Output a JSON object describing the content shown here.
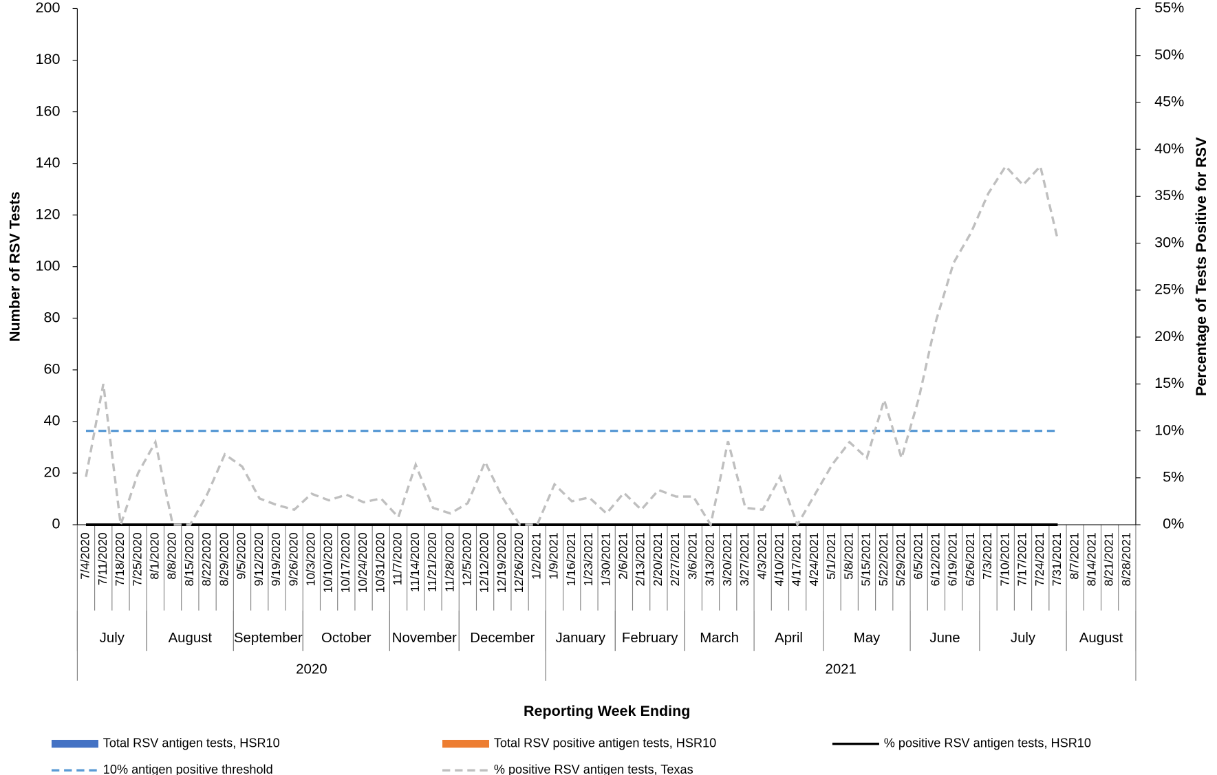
{
  "chart_data": {
    "type": "combo",
    "y_label": "Number of RSV Tests",
    "y2_label": "Percentage of Tests Positive for RSV",
    "x_label": "Reporting Week Ending",
    "categories": [
      "7/4/2020",
      "7/11/2020",
      "7/18/2020",
      "7/25/2020",
      "8/1/2020",
      "8/8/2020",
      "8/15/2020",
      "8/22/2020",
      "8/29/2020",
      "9/5/2020",
      "9/12/2020",
      "9/19/2020",
      "9/26/2020",
      "10/3/2020",
      "10/10/2020",
      "10/17/2020",
      "10/24/2020",
      "10/31/2020",
      "11/7/2020",
      "11/14/2020",
      "11/21/2020",
      "11/28/2020",
      "12/5/2020",
      "12/12/2020",
      "12/19/2020",
      "12/26/2020",
      "1/2/2021",
      "1/9/2021",
      "1/16/2021",
      "1/23/2021",
      "1/30/2021",
      "2/6/2021",
      "2/13/2021",
      "2/20/2021",
      "2/27/2021",
      "3/6/2021",
      "3/13/2021",
      "3/20/2021",
      "3/27/2021",
      "4/3/2021",
      "4/10/2021",
      "4/17/2021",
      "4/24/2021",
      "5/1/2021",
      "5/8/2021",
      "5/15/2021",
      "5/22/2021",
      "5/29/2021",
      "6/5/2021",
      "6/12/2021",
      "6/19/2021",
      "6/26/2021",
      "7/3/2021",
      "7/10/2021",
      "7/17/2021",
      "7/24/2021",
      "7/31/2021",
      "8/7/2021",
      "8/14/2021",
      "8/21/2021",
      "8/28/2021"
    ],
    "months": [
      {
        "label": "July",
        "weeks": 4
      },
      {
        "label": "August",
        "weeks": 5
      },
      {
        "label": "September",
        "weeks": 4
      },
      {
        "label": "October",
        "weeks": 5
      },
      {
        "label": "November",
        "weeks": 4
      },
      {
        "label": "December",
        "weeks": 5
      },
      {
        "label": "January",
        "weeks": 4
      },
      {
        "label": "February",
        "weeks": 4
      },
      {
        "label": "March",
        "weeks": 4
      },
      {
        "label": "April",
        "weeks": 4
      },
      {
        "label": "May",
        "weeks": 5
      },
      {
        "label": "June",
        "weeks": 4
      },
      {
        "label": "July",
        "weeks": 5
      },
      {
        "label": "August",
        "weeks": 4
      }
    ],
    "years": [
      {
        "label": "2020",
        "weeks": 27
      },
      {
        "label": "2021",
        "weeks": 34
      }
    ],
    "ylim": [
      0,
      200
    ],
    "yticks": [
      0,
      20,
      40,
      60,
      80,
      100,
      120,
      140,
      160,
      180,
      200
    ],
    "y2lim": [
      0,
      55
    ],
    "y2ticks": [
      {
        "value": 0,
        "label": "0%"
      },
      {
        "value": 5,
        "label": "5%"
      },
      {
        "value": 10,
        "label": "10%"
      },
      {
        "value": 15,
        "label": "15%"
      },
      {
        "value": 20,
        "label": "20%"
      },
      {
        "value": 25,
        "label": "25%"
      },
      {
        "value": 30,
        "label": "30%"
      },
      {
        "value": 35,
        "label": "35%"
      },
      {
        "value": 40,
        "label": "40%"
      },
      {
        "value": 45,
        "label": "45%"
      },
      {
        "value": 50,
        "label": "50%"
      },
      {
        "value": 55,
        "label": "55%"
      }
    ],
    "series": [
      {
        "name": "Total RSV antigen tests, HSR10",
        "kind": "bar",
        "color": "#4472c4",
        "values": [
          0,
          0,
          0,
          0,
          0,
          0,
          0,
          0,
          0,
          0,
          0,
          0,
          0,
          0,
          0,
          0,
          0,
          0,
          0,
          0,
          0,
          0,
          0,
          0,
          0,
          0,
          0,
          0,
          0,
          0,
          0,
          0,
          0,
          0,
          0,
          0,
          0,
          0,
          0,
          0,
          0,
          0,
          0,
          0,
          0,
          0,
          0,
          0,
          0,
          0,
          0,
          0,
          0,
          0,
          0,
          0,
          0,
          null,
          null,
          null,
          null
        ]
      },
      {
        "name": "Total RSV positive antigen tests, HSR10",
        "kind": "bar",
        "color": "#ed7d31",
        "values": [
          0,
          0,
          0,
          0,
          0,
          0,
          0,
          0,
          0,
          0,
          0,
          0,
          0,
          0,
          0,
          0,
          0,
          0,
          0,
          0,
          0,
          0,
          0,
          0,
          0,
          0,
          0,
          0,
          0,
          0,
          0,
          0,
          0,
          0,
          0,
          0,
          0,
          0,
          0,
          0,
          0,
          0,
          0,
          0,
          0,
          0,
          0,
          0,
          0,
          0,
          0,
          0,
          0,
          0,
          0,
          0,
          0,
          null,
          null,
          null,
          null
        ]
      },
      {
        "name": "% positive RSV antigen tests, HSR10",
        "kind": "line",
        "axis": "y2",
        "color": "#000000",
        "dash": false,
        "values": [
          0,
          0,
          0,
          0,
          0,
          0,
          0,
          0,
          0,
          0,
          0,
          0,
          0,
          0,
          0,
          0,
          0,
          0,
          0,
          0,
          0,
          0,
          0,
          0,
          0,
          0,
          0,
          0,
          0,
          0,
          0,
          0,
          0,
          0,
          0,
          0,
          0,
          0,
          0,
          0,
          0,
          0,
          0,
          0,
          0,
          0,
          0,
          0,
          0,
          0,
          0,
          0,
          0,
          0,
          0,
          0,
          0,
          null,
          null,
          null,
          null
        ]
      },
      {
        "name": "10% antigen positive threshold",
        "kind": "line",
        "axis": "y2",
        "color": "#5b9bd5",
        "dash": true,
        "values": [
          10,
          10,
          10,
          10,
          10,
          10,
          10,
          10,
          10,
          10,
          10,
          10,
          10,
          10,
          10,
          10,
          10,
          10,
          10,
          10,
          10,
          10,
          10,
          10,
          10,
          10,
          10,
          10,
          10,
          10,
          10,
          10,
          10,
          10,
          10,
          10,
          10,
          10,
          10,
          10,
          10,
          10,
          10,
          10,
          10,
          10,
          10,
          10,
          10,
          10,
          10,
          10,
          10,
          10,
          10,
          10,
          10,
          null,
          null,
          null,
          null
        ]
      },
      {
        "name": "% positive RSV antigen tests, Texas",
        "kind": "line",
        "axis": "y2",
        "color": "#bfbfbf",
        "dash": true,
        "values": [
          5.1,
          15,
          0,
          5.5,
          8.8,
          0,
          0,
          3.3,
          7.5,
          6.2,
          2.8,
          2.1,
          1.6,
          3.3,
          2.6,
          3.2,
          2.4,
          2.8,
          0.8,
          6.4,
          1.8,
          1.2,
          2.3,
          6.7,
          2.9,
          0,
          0,
          4.3,
          2.5,
          2.9,
          1.2,
          3.4,
          1.6,
          3.7,
          3,
          3,
          0,
          8.9,
          1.8,
          1.6,
          5.1,
          0,
          3.2,
          6.4,
          8.8,
          7.1,
          13.3,
          7.1,
          13.5,
          21.8,
          27.9,
          31.1,
          35.3,
          38.2,
          36.2,
          38.2,
          30.4,
          null,
          null,
          null,
          null
        ]
      }
    ]
  }
}
